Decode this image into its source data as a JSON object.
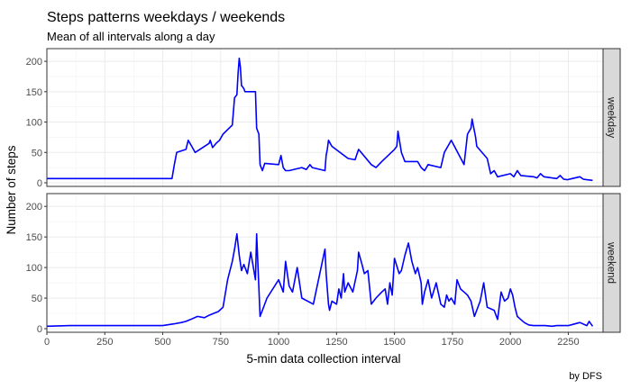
{
  "chart_data": {
    "type": "line",
    "title": "Steps patterns weekdays / weekends",
    "subtitle": "Mean of all intervals along a day",
    "xlabel": "5-min data collection interval",
    "ylabel": "Number of steps",
    "caption": "by DFS",
    "xlim": [
      0,
      2400
    ],
    "ylim": [
      0,
      215
    ],
    "x_ticks": [
      0,
      250,
      500,
      750,
      1000,
      1250,
      1500,
      1750,
      2000,
      2250
    ],
    "y_ticks": [
      0,
      50,
      100,
      150,
      200
    ],
    "grid": true,
    "line_color": "#0000FF",
    "panels": [
      {
        "label": "weekday",
        "x": [
          0,
          200,
          400,
          540,
          550,
          560,
          600,
          610,
          625,
          640,
          660,
          700,
          705,
          715,
          730,
          745,
          760,
          800,
          810,
          820,
          825,
          830,
          835,
          840,
          845,
          850,
          855,
          900,
          905,
          915,
          920,
          930,
          940,
          1000,
          1010,
          1020,
          1030,
          1045,
          1100,
          1120,
          1135,
          1145,
          1200,
          1205,
          1210,
          1215,
          1230,
          1300,
          1330,
          1345,
          1400,
          1420,
          1445,
          1500,
          1510,
          1515,
          1530,
          1545,
          1600,
          1615,
          1630,
          1645,
          1700,
          1715,
          1730,
          1745,
          1800,
          1815,
          1830,
          1835,
          1840,
          1845,
          1850,
          1855,
          1900,
          1915,
          1930,
          1945,
          2000,
          2015,
          2030,
          2045,
          2100,
          2115,
          2130,
          2145,
          2200,
          2215,
          2230,
          2245,
          2300,
          2315,
          2330,
          2355
        ],
        "y": [
          7,
          7,
          7,
          7,
          30,
          50,
          55,
          70,
          60,
          50,
          55,
          65,
          70,
          58,
          65,
          70,
          80,
          95,
          140,
          145,
          180,
          205,
          190,
          160,
          158,
          155,
          150,
          150,
          90,
          80,
          30,
          20,
          32,
          30,
          45,
          25,
          20,
          20,
          25,
          22,
          30,
          25,
          20,
          45,
          55,
          70,
          60,
          40,
          38,
          55,
          30,
          25,
          35,
          55,
          60,
          85,
          50,
          35,
          35,
          25,
          20,
          30,
          25,
          50,
          60,
          70,
          30,
          80,
          90,
          105,
          95,
          85,
          75,
          60,
          40,
          15,
          20,
          10,
          15,
          10,
          20,
          12,
          10,
          8,
          15,
          10,
          7,
          12,
          6,
          5,
          10,
          6,
          5,
          4
        ]
      },
      {
        "label": "weekend",
        "x": [
          0,
          100,
          200,
          300,
          400,
          500,
          550,
          580,
          600,
          620,
          650,
          680,
          700,
          720,
          740,
          760,
          780,
          800,
          810,
          820,
          830,
          840,
          850,
          865,
          880,
          900,
          905,
          920,
          930,
          950,
          1000,
          1020,
          1030,
          1045,
          1060,
          1080,
          1100,
          1150,
          1200,
          1205,
          1215,
          1220,
          1230,
          1250,
          1260,
          1270,
          1280,
          1285,
          1300,
          1320,
          1340,
          1345,
          1360,
          1370,
          1385,
          1400,
          1420,
          1445,
          1460,
          1470,
          1480,
          1490,
          1500,
          1520,
          1530,
          1545,
          1560,
          1575,
          1590,
          1600,
          1615,
          1620,
          1630,
          1645,
          1660,
          1680,
          1700,
          1715,
          1725,
          1735,
          1745,
          1760,
          1770,
          1785,
          1800,
          1815,
          1830,
          1845,
          1870,
          1885,
          1900,
          1930,
          1945,
          1960,
          1975,
          1990,
          2000,
          2010,
          2020,
          2030,
          2045,
          2060,
          2080,
          2100,
          2130,
          2150,
          2180,
          2200,
          2250,
          2300,
          2330,
          2340,
          2355
        ],
        "y": [
          4,
          5,
          5,
          5,
          5,
          5,
          8,
          10,
          12,
          15,
          20,
          18,
          22,
          25,
          28,
          35,
          80,
          110,
          130,
          155,
          120,
          95,
          105,
          90,
          125,
          80,
          155,
          20,
          30,
          50,
          80,
          60,
          110,
          70,
          60,
          100,
          50,
          40,
          130,
          90,
          40,
          30,
          45,
          40,
          65,
          50,
          90,
          60,
          75,
          60,
          95,
          125,
          105,
          90,
          95,
          40,
          50,
          60,
          65,
          40,
          75,
          55,
          115,
          90,
          95,
          120,
          140,
          110,
          90,
          100,
          75,
          40,
          60,
          80,
          50,
          75,
          40,
          35,
          55,
          45,
          50,
          40,
          80,
          65,
          60,
          55,
          45,
          20,
          45,
          75,
          35,
          30,
          15,
          60,
          45,
          50,
          65,
          55,
          35,
          20,
          15,
          10,
          6,
          5,
          5,
          5,
          4,
          5,
          5,
          10,
          5,
          12,
          4
        ]
      }
    ]
  }
}
